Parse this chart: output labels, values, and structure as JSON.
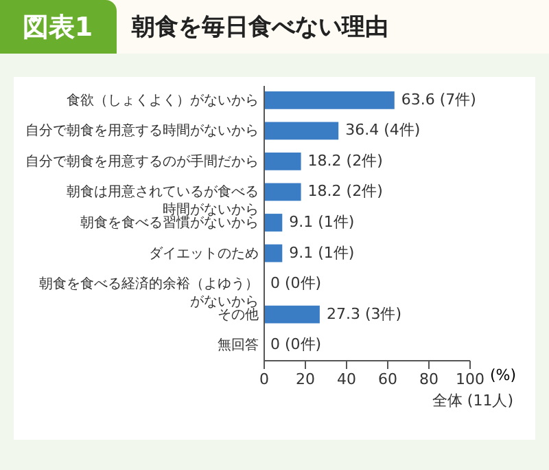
{
  "chart_data": {
    "type": "bar",
    "orientation": "horizontal",
    "title": "朝食を毎日食べない理由",
    "categories": [
      "食欲（しょくよく）がないから",
      "自分で朝食を用意する時間がないから",
      "自分で朝食を用意するのが手間だから",
      "朝食は用意されているが食べる時間がないから",
      "朝食を食べる習慣がないから",
      "ダイエットのため",
      "朝食を食べる経済的余裕（よゆう）がないから",
      "その他",
      "無回答"
    ],
    "values": [
      63.6,
      36.4,
      18.2,
      18.2,
      9.1,
      9.1,
      0,
      27.3,
      0
    ],
    "value_labels": [
      "63.6 (7件)",
      "36.4 (4件)",
      "18.2 (2件)",
      "18.2 (2件)",
      "9.1 (1件)",
      "9.1 (1件)",
      "0 (0件)",
      "27.3 (3件)",
      "0 (0件)"
    ],
    "color": "#3a7dc4",
    "xlim": [
      0,
      100
    ],
    "xticks": [
      0,
      20,
      40,
      60,
      80,
      100
    ],
    "xlabel": "(%)",
    "annotations": [
      "図表1",
      "全体 (11人)"
    ],
    "grid": false,
    "legend": false
  }
}
